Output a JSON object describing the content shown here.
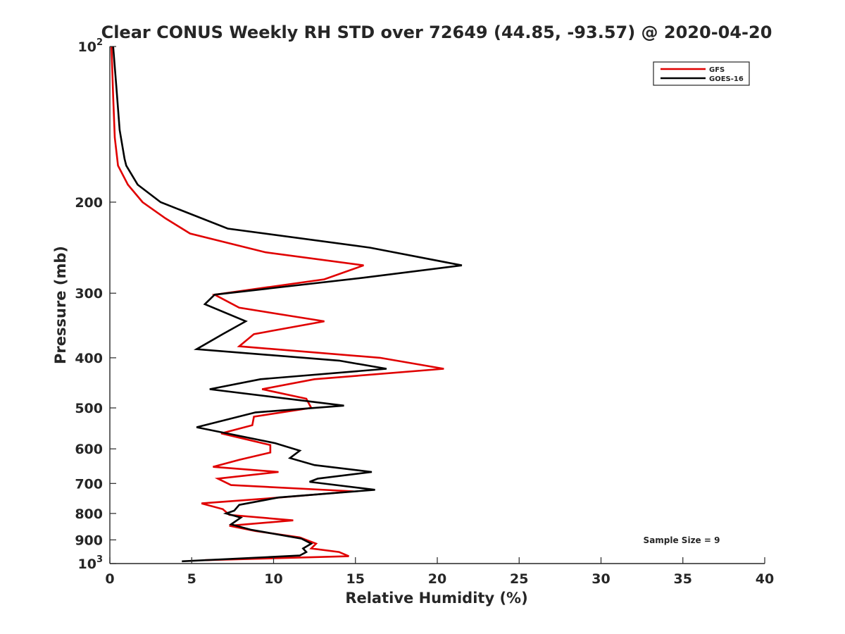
{
  "chart_data": {
    "type": "line",
    "title": "Clear CONUS Weekly RH STD over 72649 (44.85, -93.57) @ 2020-04-20",
    "xlabel": "Relative Humidity (%)",
    "ylabel": "Pressure (mb)",
    "xlim": [
      0,
      40
    ],
    "ylim": [
      100,
      1000
    ],
    "yscale": "log",
    "y_reversed": true,
    "grid": false,
    "legend_position": "top-right",
    "x_ticks": [
      0,
      5,
      10,
      15,
      20,
      25,
      30,
      35,
      40
    ],
    "y_ticks": [
      {
        "value": 100,
        "base": "10",
        "exp": "2"
      },
      {
        "value": 200,
        "label": "200"
      },
      {
        "value": 300,
        "label": "300"
      },
      {
        "value": 400,
        "label": "400"
      },
      {
        "value": 500,
        "label": "500"
      },
      {
        "value": 600,
        "label": "600"
      },
      {
        "value": 700,
        "label": "700"
      },
      {
        "value": 800,
        "label": "800"
      },
      {
        "value": 900,
        "label": "900"
      },
      {
        "value": 1000,
        "base": "10",
        "exp": "3"
      }
    ],
    "annotation": "Sample Size = 9",
    "series": [
      {
        "name": "GFS",
        "color": "#e00000",
        "points": [
          [
            0.1,
            100
          ],
          [
            0.2,
            125
          ],
          [
            0.3,
            150
          ],
          [
            0.5,
            170
          ],
          [
            1.1,
            185
          ],
          [
            2.0,
            200
          ],
          [
            3.4,
            215
          ],
          [
            4.9,
            230
          ],
          [
            9.5,
            250
          ],
          [
            15.5,
            265
          ],
          [
            13.1,
            282
          ],
          [
            6.4,
            302
          ],
          [
            7.9,
            320
          ],
          [
            13.1,
            340
          ],
          [
            8.8,
            360
          ],
          [
            7.9,
            380
          ],
          [
            16.5,
            400
          ],
          [
            20.4,
            420
          ],
          [
            12.5,
            440
          ],
          [
            9.3,
            460
          ],
          [
            12.0,
            480
          ],
          [
            12.3,
            500
          ],
          [
            8.8,
            520
          ],
          [
            8.7,
            540
          ],
          [
            6.8,
            560
          ],
          [
            9.8,
            590
          ],
          [
            9.8,
            610
          ],
          [
            7.9,
            630
          ],
          [
            6.3,
            650
          ],
          [
            10.3,
            665
          ],
          [
            6.6,
            685
          ],
          [
            7.4,
            705
          ],
          [
            14.9,
            725
          ],
          [
            10.4,
            745
          ],
          [
            5.6,
            765
          ],
          [
            6.9,
            785
          ],
          [
            7.3,
            805
          ],
          [
            11.2,
            825
          ],
          [
            7.3,
            845
          ],
          [
            8.9,
            865
          ],
          [
            11.6,
            890
          ],
          [
            12.6,
            915
          ],
          [
            12.3,
            935
          ],
          [
            14.0,
            950
          ],
          [
            14.6,
            968
          ],
          [
            5.8,
            985
          ]
        ]
      },
      {
        "name": "GOES-16",
        "color": "#000000",
        "points": [
          [
            0.2,
            100
          ],
          [
            0.4,
            120
          ],
          [
            0.6,
            145
          ],
          [
            0.9,
            165
          ],
          [
            1.0,
            170
          ],
          [
            1.7,
            185
          ],
          [
            3.1,
            200
          ],
          [
            7.2,
            225
          ],
          [
            15.9,
            245
          ],
          [
            21.5,
            265
          ],
          [
            15.5,
            280
          ],
          [
            6.4,
            302
          ],
          [
            5.8,
            315
          ],
          [
            8.3,
            340
          ],
          [
            6.9,
            360
          ],
          [
            5.3,
            385
          ],
          [
            14.0,
            405
          ],
          [
            16.9,
            420
          ],
          [
            9.2,
            440
          ],
          [
            6.1,
            460
          ],
          [
            14.3,
            495
          ],
          [
            8.9,
            510
          ],
          [
            5.3,
            545
          ],
          [
            10.1,
            585
          ],
          [
            11.6,
            605
          ],
          [
            11.0,
            625
          ],
          [
            12.5,
            645
          ],
          [
            16.0,
            665
          ],
          [
            12.7,
            685
          ],
          [
            12.2,
            695
          ],
          [
            16.2,
            720
          ],
          [
            10.3,
            745
          ],
          [
            7.9,
            770
          ],
          [
            7.6,
            790
          ],
          [
            7.1,
            800
          ],
          [
            8.0,
            815
          ],
          [
            7.4,
            840
          ],
          [
            8.6,
            860
          ],
          [
            11.7,
            895
          ],
          [
            12.3,
            915
          ],
          [
            11.8,
            935
          ],
          [
            12.0,
            950
          ],
          [
            11.6,
            965
          ],
          [
            4.4,
            990
          ]
        ]
      }
    ]
  }
}
